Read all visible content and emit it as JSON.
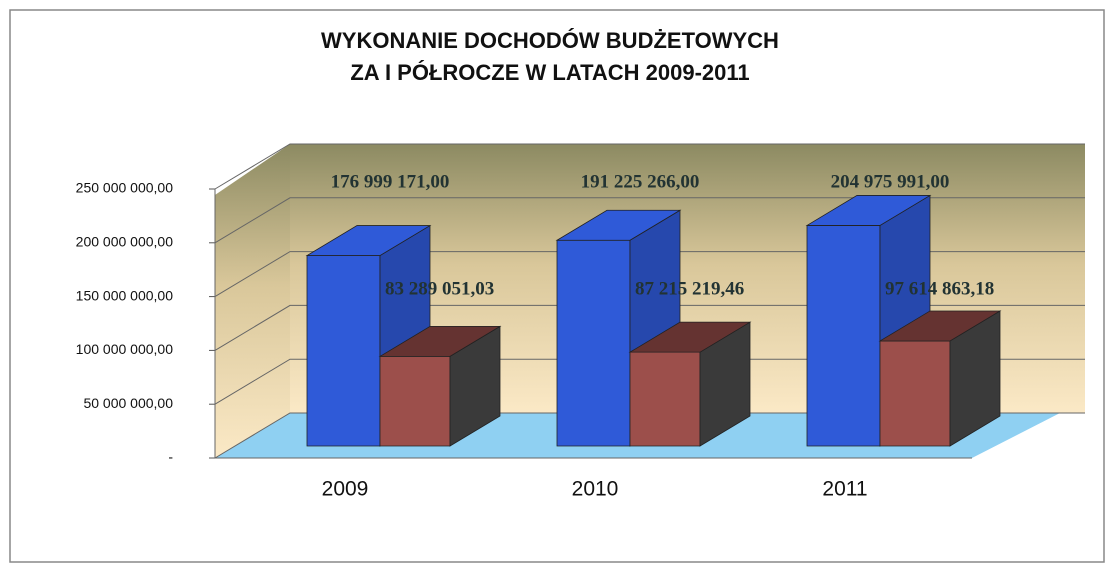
{
  "chart_data": {
    "type": "bar3d",
    "title": [
      "WYKONANIE DOCHODÓW BUDŻETOWYCH",
      "ZA I PÓŁROCZE W LATACH 2009-2011"
    ],
    "categories": [
      "2009",
      "2010",
      "2011"
    ],
    "series": [
      {
        "color": "#2f5ad8",
        "values": [
          176999171,
          191225266,
          204975991
        ],
        "value_labels": [
          "176 999 171,00",
          "191 225 266,00",
          "204 975 991,00"
        ]
      },
      {
        "color": "#9c4f4b",
        "values": [
          83289051.03,
          87215219.46,
          97614863.18
        ],
        "value_labels": [
          "83 289 051,03",
          "87 215 219,46",
          "97 614 863,18"
        ]
      }
    ],
    "ylim": [
      0,
      250000000
    ],
    "yticks": [
      {
        "value": 0,
        "label": "-"
      },
      {
        "value": 50000000,
        "label": "50 000 000,00"
      },
      {
        "value": 100000000,
        "label": "100 000 000,00"
      },
      {
        "value": 150000000,
        "label": "150 000 000,00"
      },
      {
        "value": 200000000,
        "label": "200 000 000,00"
      },
      {
        "value": 250000000,
        "label": "250 000 000,00"
      }
    ],
    "grid": true
  }
}
